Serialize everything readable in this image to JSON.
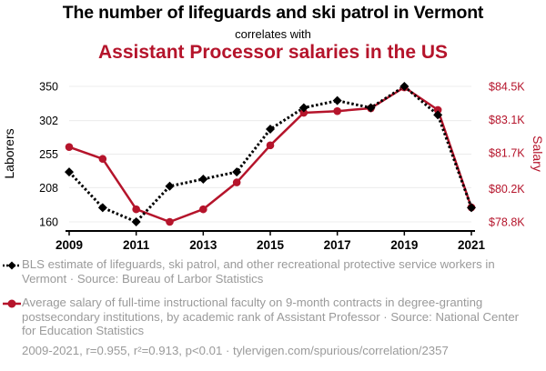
{
  "title": {
    "line1": "The number of lifeguards and ski patrol in Vermont",
    "line2": "correlates with",
    "line3": "Assistant Processor salaries in the US"
  },
  "colors": {
    "series1": "#000000",
    "series2": "#b5142b",
    "muted": "#9a9a9a"
  },
  "chart_data": {
    "type": "line",
    "x": [
      2009,
      2010,
      2011,
      2012,
      2013,
      2014,
      2015,
      2016,
      2017,
      2018,
      2019,
      2020,
      2021
    ],
    "x_ticks": [
      "2009",
      "2011",
      "2013",
      "2015",
      "2017",
      "2019",
      "2021"
    ],
    "x_tick_values": [
      2009,
      2011,
      2013,
      2015,
      2017,
      2019,
      2021
    ],
    "xlim": [
      2009,
      2021
    ],
    "y_left": {
      "label": "Laborers",
      "ticks": [
        "350",
        "302",
        "255",
        "208",
        "160"
      ],
      "tick_values": [
        350,
        302,
        255,
        208,
        160
      ],
      "lim": [
        160,
        350
      ]
    },
    "y_right": {
      "label": "Salary",
      "ticks": [
        "$84.5K",
        "$83.1K",
        "$81.7K",
        "$80.2K",
        "$78.8K"
      ],
      "tick_values": [
        84500,
        83100,
        81700,
        80200,
        78800
      ],
      "lim": [
        78800,
        84500
      ]
    },
    "series": [
      {
        "name": "Laborers",
        "axis": "left",
        "marker": "diamond",
        "line": "dotted",
        "color": "#000000",
        "values": [
          230,
          180,
          160,
          210,
          220,
          230,
          290,
          320,
          330,
          320,
          350,
          310,
          180
        ]
      },
      {
        "name": "Salary",
        "axis": "right",
        "marker": "circle",
        "line": "solid",
        "color": "#b5142b",
        "values": [
          81950,
          81450,
          79330,
          78800,
          79330,
          80460,
          82020,
          83390,
          83460,
          83580,
          84460,
          83510,
          79410
        ]
      }
    ]
  },
  "legend": {
    "series1": "BLS estimate of lifeguards, ski patrol, and other recreational protective service workers in Vermont · Source: Bureau of Larbor Statistics",
    "series2": "Average salary of full-time instructional faculty on 9-month contracts in degree-granting postsecondary institutions, by academic rank of Assistant Professor · Source: National Center for Education Statistics"
  },
  "stats": "2009-2021, r=0.955, r²=0.913, p<0.01 · tylervigen.com/spurious/correlation/2357"
}
